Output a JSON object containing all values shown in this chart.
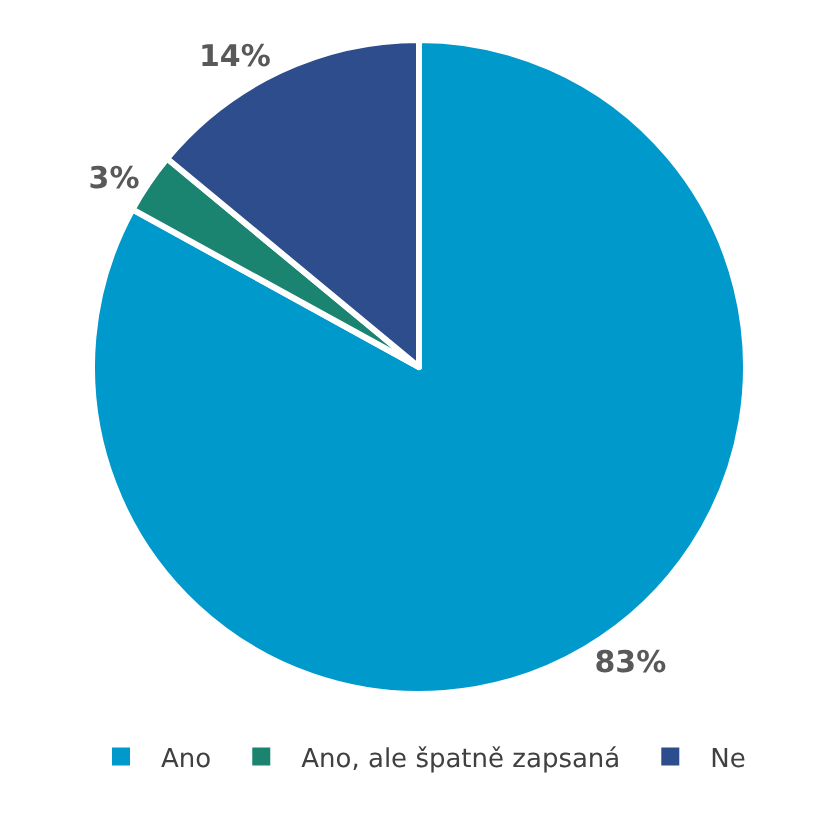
{
  "chart_data": {
    "type": "pie",
    "categories": [
      "Ano",
      "Ano, ale špatně zapsaná",
      "Ne"
    ],
    "values": [
      83,
      3,
      14
    ],
    "colors": [
      "#0099cc",
      "#1b8470",
      "#2e4d8c"
    ],
    "value_labels": [
      "83%",
      "3%",
      "14%"
    ],
    "legend": "bottom"
  }
}
